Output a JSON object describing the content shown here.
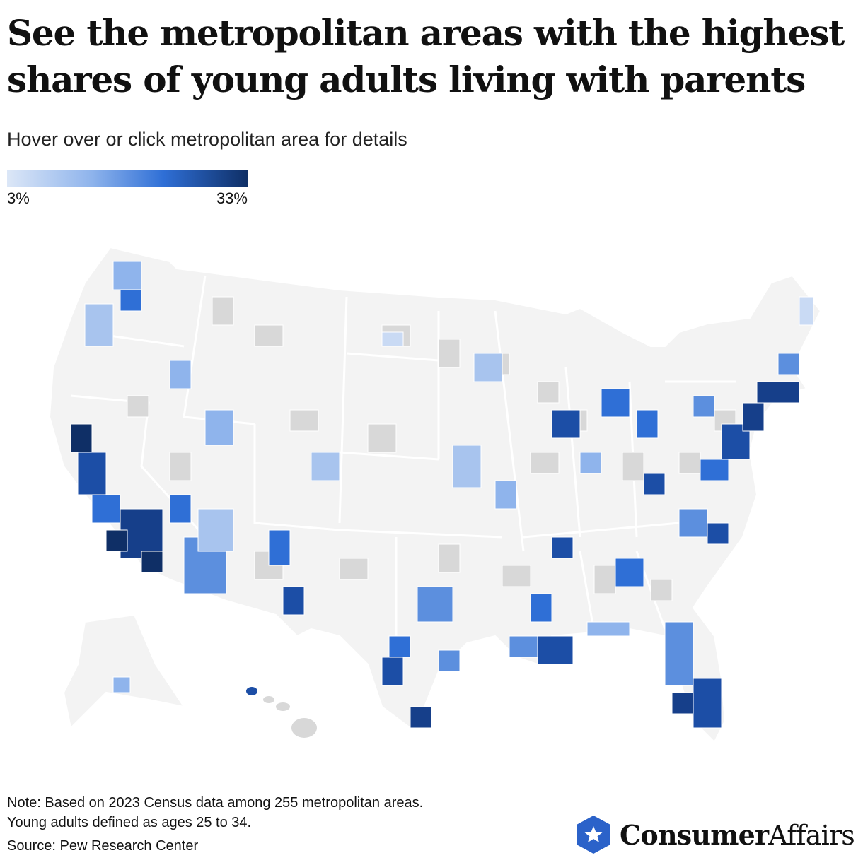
{
  "header": {
    "title": "See the metropolitan areas with the highest shares of young adults living with parents",
    "subtitle": "Hover over or click metropolitan area for details"
  },
  "legend": {
    "min_label": "3%",
    "max_label": "33%",
    "min_value": 3,
    "max_value": 33,
    "colors": [
      "#dce7f7",
      "#8fb4ec",
      "#2f6fd6",
      "#0f2f66"
    ]
  },
  "map": {
    "region": "United States (contiguous, Alaska, Hawaii)",
    "unit_level": "metropolitan areas",
    "background_color": "#f3f3f3",
    "no_data_county_color": "#d8d8d8",
    "border_color": "#ffffff"
  },
  "footer": {
    "note_line1": "Note: Based on 2023 Census data among 255 metropolitan areas.",
    "note_line2": "Young adults defined as ages 25 to 34.",
    "source": "Source: Pew Research Center"
  },
  "brand": {
    "name_bold": "Consumer",
    "name_regular": "Affairs",
    "logo_icon": "hexagon-star-icon",
    "logo_color": "#2b62c9"
  }
}
